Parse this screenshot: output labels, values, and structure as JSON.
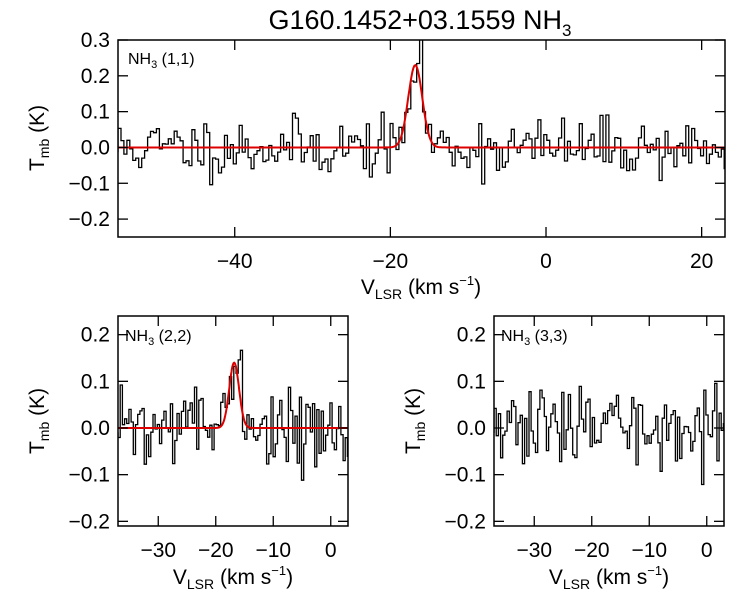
{
  "figure": {
    "title_main": "G160.1452+03.1559 NH",
    "title_sub": "3"
  },
  "chart_data": [
    {
      "type": "line",
      "id": "nh3-11",
      "label": {
        "main": "NH",
        "sub": "3",
        "rest": " (1,1)"
      },
      "xlabel": {
        "main": "V",
        "sub": "LSR",
        "rest": " (km s",
        "sup": "−1",
        "end": ")"
      },
      "ylabel": {
        "main": "T",
        "sub": "mb",
        "rest": " (K)"
      },
      "xlim": [
        -55,
        23
      ],
      "ylim": [
        -0.25,
        0.3
      ],
      "xticks": [
        -40,
        -20,
        0,
        20
      ],
      "yticks": [
        -0.2,
        -0.1,
        0.0,
        0.1,
        0.2,
        0.3
      ],
      "ytick_labels": [
        "−0.2",
        "−0.1",
        "0.0",
        "0.1",
        "0.2",
        "0.3"
      ],
      "xtick_labels": [
        "−40",
        "−20",
        "0",
        "20"
      ],
      "spectrum_noise": 0.055,
      "seed": 11,
      "fit": {
        "amplitude": 0.23,
        "center": -16.8,
        "sigma": 0.9,
        "color": "#dd0000"
      }
    },
    {
      "type": "line",
      "id": "nh3-22",
      "label": {
        "main": "NH",
        "sub": "3",
        "rest": " (2,2)"
      },
      "xlabel": {
        "main": "V",
        "sub": "LSR",
        "rest": " (km s",
        "sup": "−1",
        "end": ")"
      },
      "ylabel": {
        "main": "T",
        "sub": "mb",
        "rest": " (K)"
      },
      "xlim": [
        -37,
        3
      ],
      "ylim": [
        -0.21,
        0.24
      ],
      "xticks": [
        -30,
        -20,
        -10,
        0
      ],
      "yticks": [
        -0.2,
        -0.1,
        0.0,
        0.1,
        0.2
      ],
      "ytick_labels": [
        "−0.2",
        "−0.1",
        "0.0",
        "0.1",
        "0.2"
      ],
      "xtick_labels": [
        "−30",
        "−20",
        "−10",
        "0"
      ],
      "spectrum_noise": 0.055,
      "seed": 22,
      "fit": {
        "amplitude": 0.14,
        "center": -16.8,
        "sigma": 0.85,
        "color": "#dd0000"
      }
    },
    {
      "type": "line",
      "id": "nh3-33",
      "label": {
        "main": "NH",
        "sub": "3",
        "rest": " (3,3)"
      },
      "xlabel": {
        "main": "V",
        "sub": "LSR",
        "rest": " (km s",
        "sup": "−1",
        "end": ")"
      },
      "ylabel": {
        "main": "T",
        "sub": "mb",
        "rest": " (K)"
      },
      "xlim": [
        -37,
        3
      ],
      "ylim": [
        -0.21,
        0.24
      ],
      "xticks": [
        -30,
        -20,
        -10,
        0
      ],
      "yticks": [
        -0.2,
        -0.1,
        0.0,
        0.1,
        0.2
      ],
      "ytick_labels": [
        "−0.2",
        "−0.1",
        "0.0",
        "0.1",
        "0.2"
      ],
      "xtick_labels": [
        "−30",
        "−20",
        "−10",
        "0"
      ],
      "spectrum_noise": 0.055,
      "seed": 33,
      "fit": null
    }
  ]
}
